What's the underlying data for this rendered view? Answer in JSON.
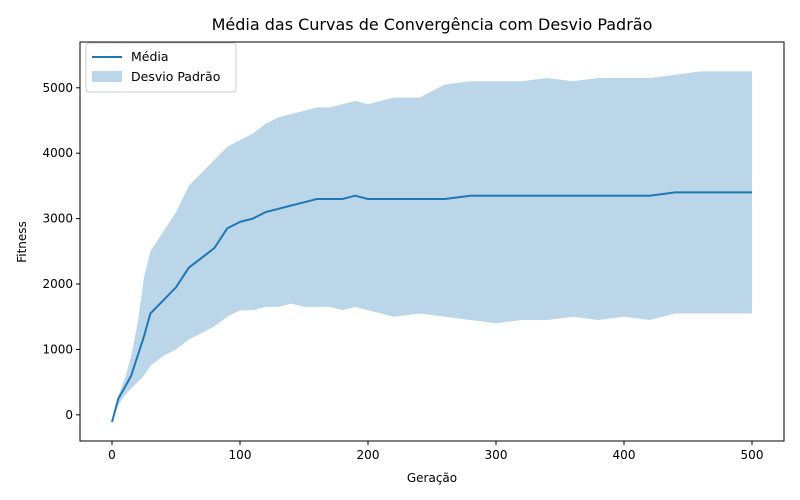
{
  "chart_data": {
    "type": "line",
    "title": "Média das Curvas de Convergência com Desvio Padrão",
    "xlabel": "Geração",
    "ylabel": "Fitness",
    "xlim": [
      -25,
      525
    ],
    "ylim": [
      -400,
      5700
    ],
    "xticks": [
      0,
      100,
      200,
      300,
      400,
      500
    ],
    "yticks": [
      0,
      1000,
      2000,
      3000,
      4000,
      5000
    ],
    "grid": false,
    "legend_position": "top-left",
    "legend": [
      "Média",
      "Desvio Padrão"
    ],
    "colors": {
      "mean_line": "#1f77b4",
      "std_band": "#1f77b4",
      "std_band_alpha": 0.3
    },
    "series": [
      {
        "name": "Média",
        "x": [
          0,
          5,
          10,
          15,
          20,
          25,
          30,
          40,
          50,
          60,
          70,
          80,
          90,
          100,
          110,
          120,
          130,
          140,
          150,
          160,
          170,
          180,
          190,
          200,
          220,
          240,
          260,
          280,
          300,
          320,
          340,
          360,
          380,
          400,
          420,
          440,
          460,
          480,
          500
        ],
        "y": [
          -110,
          250,
          420,
          600,
          900,
          1200,
          1550,
          1750,
          1950,
          2250,
          2400,
          2550,
          2850,
          2950,
          3000,
          3100,
          3150,
          3200,
          3250,
          3300,
          3300,
          3300,
          3350,
          3300,
          3300,
          3300,
          3300,
          3350,
          3350,
          3350,
          3350,
          3350,
          3350,
          3350,
          3350,
          3400,
          3400,
          3400,
          3400
        ]
      },
      {
        "name": "Desvio Padrão",
        "x": [
          0,
          5,
          10,
          15,
          20,
          25,
          30,
          40,
          50,
          60,
          70,
          80,
          90,
          100,
          110,
          120,
          130,
          140,
          150,
          160,
          170,
          180,
          190,
          200,
          220,
          240,
          260,
          280,
          300,
          320,
          340,
          360,
          380,
          400,
          420,
          440,
          460,
          480,
          500
        ],
        "upper": [
          -110,
          300,
          550,
          900,
          1400,
          2100,
          2500,
          2800,
          3100,
          3500,
          3700,
          3900,
          4100,
          4200,
          4300,
          4450,
          4550,
          4600,
          4650,
          4700,
          4700,
          4750,
          4800,
          4750,
          4850,
          4850,
          5050,
          5100,
          5100,
          5100,
          5150,
          5100,
          5150,
          5150,
          5150,
          5200,
          5250,
          5250,
          5250
        ],
        "lower": [
          -110,
          150,
          300,
          400,
          500,
          600,
          750,
          900,
          1000,
          1150,
          1250,
          1350,
          1500,
          1600,
          1600,
          1650,
          1650,
          1700,
          1650,
          1650,
          1650,
          1600,
          1650,
          1600,
          1500,
          1550,
          1500,
          1450,
          1400,
          1450,
          1450,
          1500,
          1450,
          1500,
          1450,
          1550,
          1550,
          1550,
          1550
        ]
      }
    ]
  }
}
